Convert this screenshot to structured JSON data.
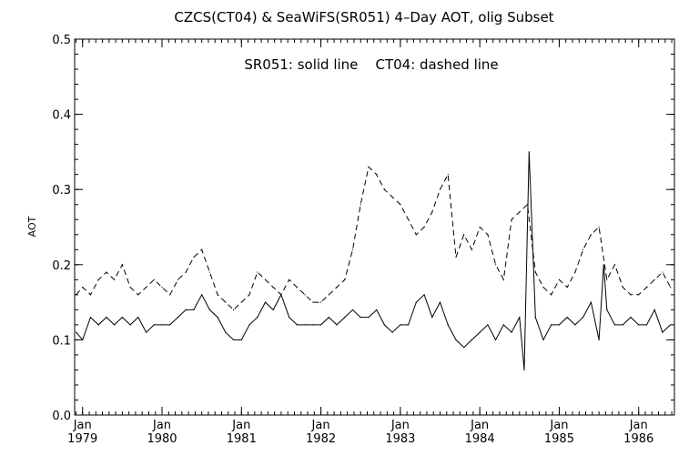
{
  "chart_data": {
    "type": "line",
    "title": "CZCS(CT04) & SeaWiFS(SR051) 4–Day AOT, olig Subset",
    "annotation": "SR051: solid line    CT04: dashed line",
    "ylabel": "AOT",
    "xlabel": "",
    "ylim": [
      0.0,
      0.5
    ],
    "xlim": [
      1978.9,
      1986.45
    ],
    "grid": false,
    "legend": "none",
    "y_ticks": [
      {
        "value": 0.0,
        "label": "0.0"
      },
      {
        "value": 0.1,
        "label": "0.1"
      },
      {
        "value": 0.2,
        "label": "0.2"
      },
      {
        "value": 0.3,
        "label": "0.3"
      },
      {
        "value": 0.4,
        "label": "0.4"
      },
      {
        "value": 0.5,
        "label": "0.5"
      }
    ],
    "x_ticks": [
      {
        "value": 1979.0,
        "month": "Jan",
        "year": "1979"
      },
      {
        "value": 1980.0,
        "month": "Jan",
        "year": "1980"
      },
      {
        "value": 1981.0,
        "month": "Jan",
        "year": "1981"
      },
      {
        "value": 1982.0,
        "month": "Jan",
        "year": "1982"
      },
      {
        "value": 1983.0,
        "month": "Jan",
        "year": "1983"
      },
      {
        "value": 1984.0,
        "month": "Jan",
        "year": "1984"
      },
      {
        "value": 1985.0,
        "month": "Jan",
        "year": "1985"
      },
      {
        "value": 1986.0,
        "month": "Jan",
        "year": "1986"
      }
    ],
    "series": [
      {
        "style": "solid",
        "x": [
          1978.92,
          1979.0,
          1979.1,
          1979.2,
          1979.3,
          1979.4,
          1979.5,
          1979.6,
          1979.7,
          1979.8,
          1979.9,
          1980.0,
          1980.1,
          1980.2,
          1980.3,
          1980.4,
          1980.5,
          1980.6,
          1980.7,
          1980.8,
          1980.9,
          1981.0,
          1981.1,
          1981.2,
          1981.3,
          1981.4,
          1981.5,
          1981.6,
          1981.7,
          1981.8,
          1981.9,
          1982.0,
          1982.1,
          1982.2,
          1982.3,
          1982.4,
          1982.5,
          1982.6,
          1982.7,
          1982.8,
          1982.9,
          1983.0,
          1983.1,
          1983.2,
          1983.3,
          1983.4,
          1983.5,
          1983.6,
          1983.7,
          1983.8,
          1983.9,
          1984.0,
          1984.1,
          1984.2,
          1984.3,
          1984.4,
          1984.5,
          1984.56,
          1984.62,
          1984.7,
          1984.8,
          1984.9,
          1985.0,
          1985.1,
          1985.2,
          1985.3,
          1985.4,
          1985.5,
          1985.56,
          1985.6,
          1985.7,
          1985.8,
          1985.9,
          1986.0,
          1986.1,
          1986.2,
          1986.3,
          1986.4
        ],
        "values": [
          0.11,
          0.1,
          0.13,
          0.12,
          0.13,
          0.12,
          0.13,
          0.12,
          0.13,
          0.11,
          0.12,
          0.12,
          0.12,
          0.13,
          0.14,
          0.14,
          0.16,
          0.14,
          0.13,
          0.11,
          0.1,
          0.1,
          0.12,
          0.13,
          0.15,
          0.14,
          0.16,
          0.13,
          0.12,
          0.12,
          0.12,
          0.12,
          0.13,
          0.12,
          0.13,
          0.14,
          0.13,
          0.13,
          0.14,
          0.12,
          0.11,
          0.12,
          0.12,
          0.15,
          0.16,
          0.13,
          0.15,
          0.12,
          0.1,
          0.09,
          0.1,
          0.11,
          0.12,
          0.1,
          0.12,
          0.11,
          0.13,
          0.06,
          0.35,
          0.13,
          0.1,
          0.12,
          0.12,
          0.13,
          0.12,
          0.13,
          0.15,
          0.1,
          0.2,
          0.14,
          0.12,
          0.12,
          0.13,
          0.12,
          0.12,
          0.14,
          0.11,
          0.12
        ]
      },
      {
        "style": "dashed",
        "x": [
          1978.92,
          1979.0,
          1979.1,
          1979.2,
          1979.3,
          1979.4,
          1979.5,
          1979.6,
          1979.7,
          1979.8,
          1979.9,
          1980.0,
          1980.1,
          1980.2,
          1980.3,
          1980.4,
          1980.5,
          1980.6,
          1980.7,
          1980.8,
          1980.9,
          1981.0,
          1981.1,
          1981.2,
          1981.3,
          1981.4,
          1981.5,
          1981.6,
          1981.7,
          1981.8,
          1981.9,
          1982.0,
          1982.1,
          1982.2,
          1982.3,
          1982.4,
          1982.5,
          1982.6,
          1982.7,
          1982.8,
          1982.9,
          1983.0,
          1983.1,
          1983.2,
          1983.3,
          1983.4,
          1983.5,
          1983.6,
          1983.7,
          1983.8,
          1983.9,
          1984.0,
          1984.1,
          1984.2,
          1984.3,
          1984.4,
          1984.5,
          1984.6,
          1984.7,
          1984.8,
          1984.9,
          1985.0,
          1985.1,
          1985.2,
          1985.3,
          1985.4,
          1985.5,
          1985.6,
          1985.7,
          1985.8,
          1985.9,
          1986.0,
          1986.1,
          1986.2,
          1986.3,
          1986.4
        ],
        "values": [
          0.16,
          0.17,
          0.16,
          0.18,
          0.19,
          0.18,
          0.2,
          0.17,
          0.16,
          0.17,
          0.18,
          0.17,
          0.16,
          0.18,
          0.19,
          0.21,
          0.22,
          0.19,
          0.16,
          0.15,
          0.14,
          0.15,
          0.16,
          0.19,
          0.18,
          0.17,
          0.16,
          0.18,
          0.17,
          0.16,
          0.15,
          0.15,
          0.16,
          0.17,
          0.18,
          0.22,
          0.28,
          0.33,
          0.32,
          0.3,
          0.29,
          0.28,
          0.26,
          0.24,
          0.25,
          0.27,
          0.3,
          0.32,
          0.21,
          0.24,
          0.22,
          0.25,
          0.24,
          0.2,
          0.18,
          0.26,
          0.27,
          0.28,
          0.19,
          0.17,
          0.16,
          0.18,
          0.17,
          0.19,
          0.22,
          0.24,
          0.25,
          0.18,
          0.2,
          0.17,
          0.16,
          0.16,
          0.17,
          0.18,
          0.19,
          0.17
        ]
      }
    ]
  }
}
